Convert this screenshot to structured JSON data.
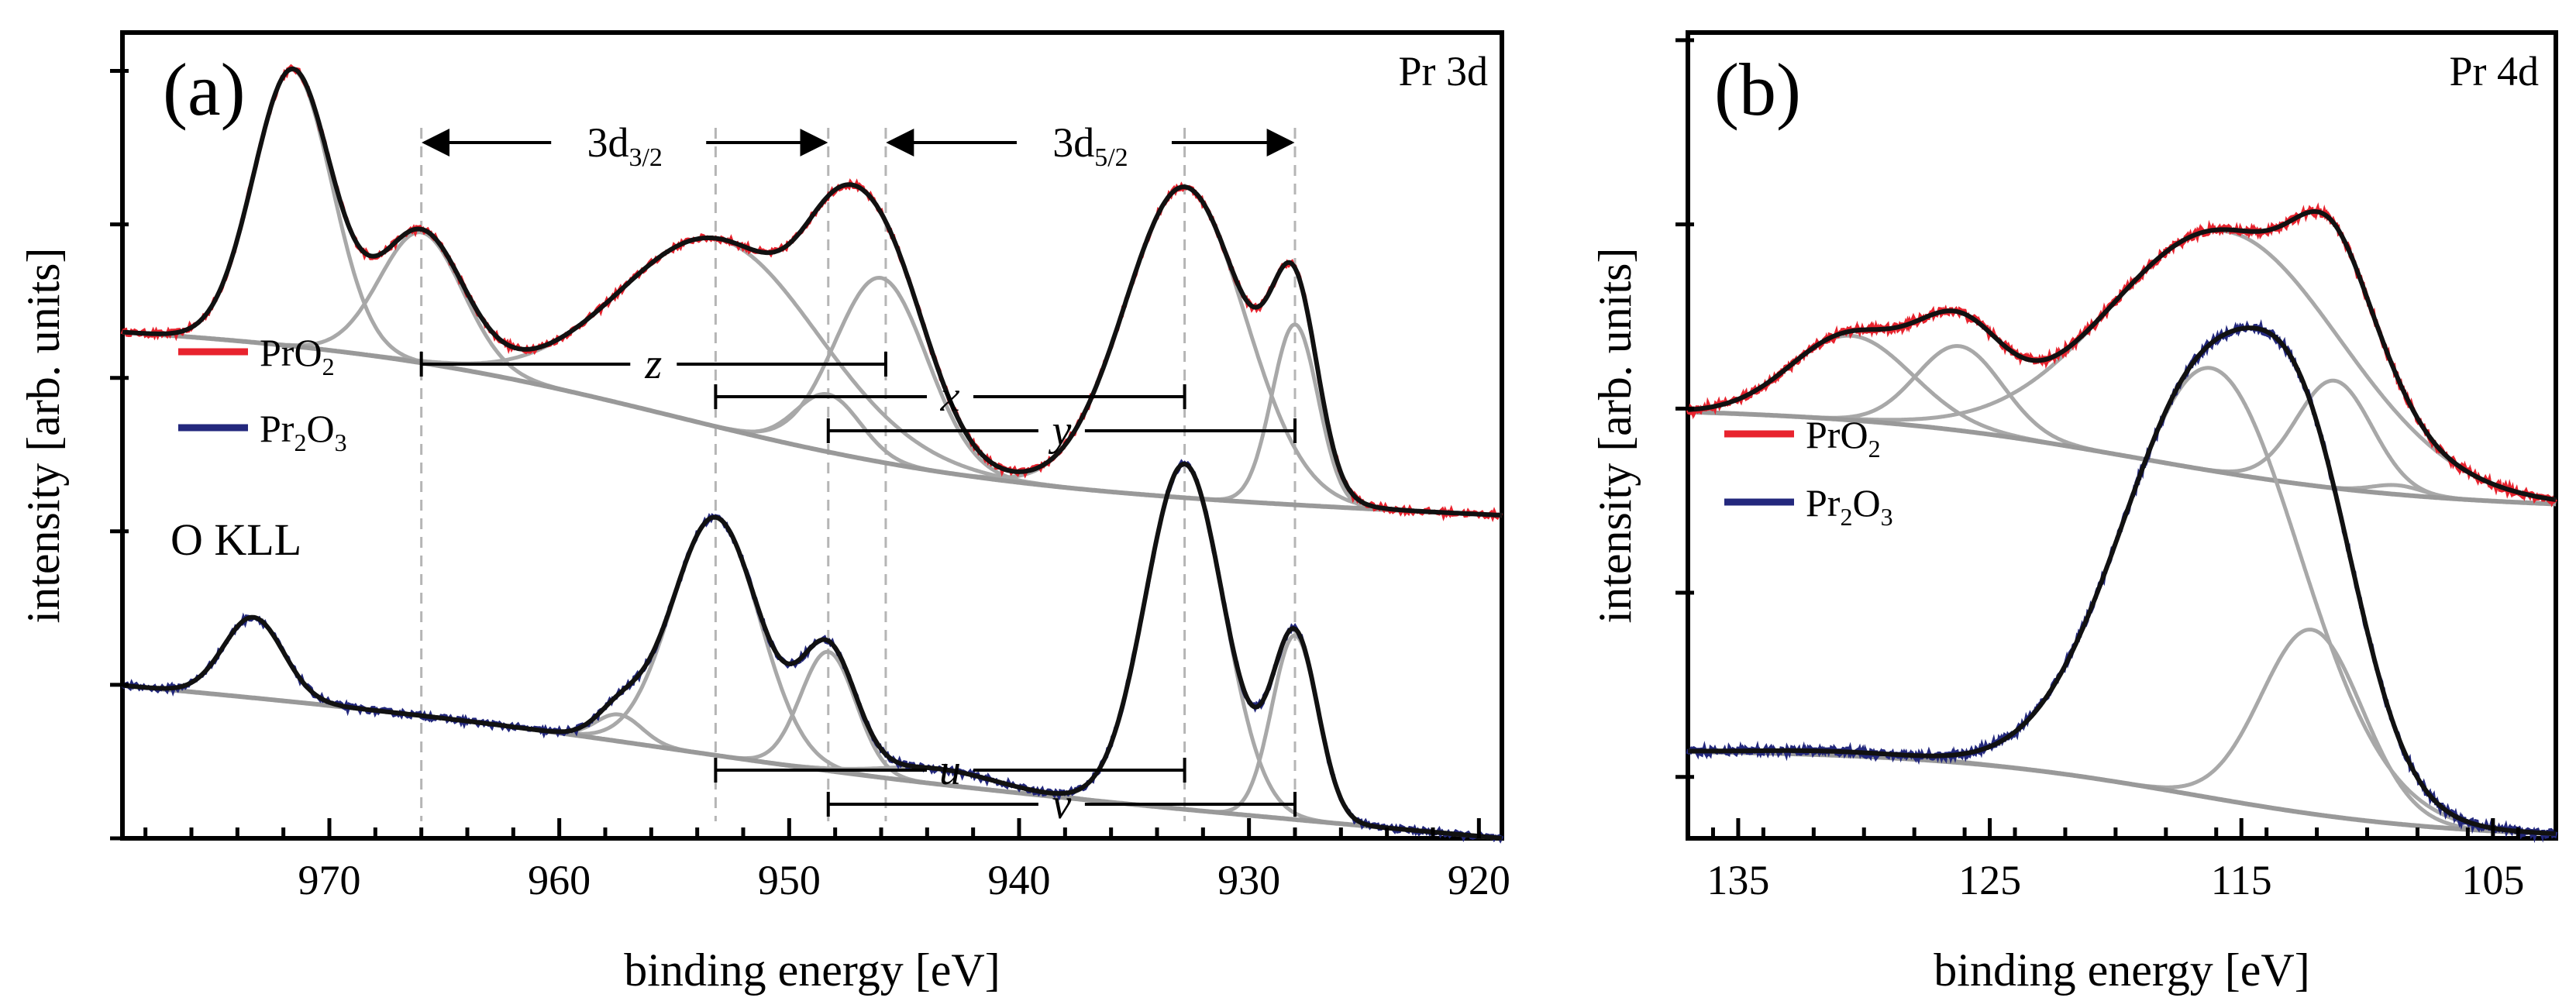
{
  "chart_data": [
    {
      "type": "line",
      "panel_label": "(a)",
      "title": "Pr 3d",
      "xlabel": "binding energy [eV]",
      "ylabel": "intensity [arb. units]",
      "xlim": [
        979,
        919
      ],
      "ylim": [
        0,
        10.5
      ],
      "x_ticks": [
        970,
        960,
        950,
        940,
        930,
        920
      ],
      "x_tick_labels": [
        "970",
        "960",
        "950",
        "940",
        "930",
        "920"
      ],
      "y_ticks": [
        0,
        2,
        4,
        6,
        8,
        10
      ],
      "legend": [
        "PrO2",
        "Pr2O3"
      ],
      "legend_position": "center-left",
      "annotations": {
        "o_kll": "O KLL",
        "d32": "3d3/2",
        "d52": "3d5/2",
        "z": "z",
        "x": "x",
        "y": "y",
        "u": "u",
        "v": "v"
      },
      "guide_lines_eV": [
        966,
        953.2,
        948.3,
        945.8,
        932.8,
        928
      ],
      "spin_orbit_arrows_eV": [
        [
          966,
          948.3
        ],
        [
          945.8,
          928
        ]
      ],
      "separations": [
        {
          "name": "z",
          "from": 966,
          "to": 945.8
        },
        {
          "name": "x",
          "from": 953.2,
          "to": 932.8
        },
        {
          "name": "y",
          "from": 948.3,
          "to": 928
        },
        {
          "name": "u",
          "from": 953.2,
          "to": 932.8
        },
        {
          "name": "v",
          "from": 948.3,
          "to": 928
        }
      ],
      "series": [
        {
          "name": "PrO2",
          "color": "#e8232e",
          "offset": 4.15,
          "background": {
            "left": 2.5,
            "right": 0.05,
            "step_center": 955,
            "step_width": 7,
            "slope": 0.3
          },
          "components": [
            {
              "center": 971.6,
              "height": 3.6,
              "width": 1.7
            },
            {
              "center": 966.0,
              "height": 1.7,
              "width": 1.8
            },
            {
              "center": 953.0,
              "height": 2.45,
              "width": 4.3
            },
            {
              "center": 948.3,
              "height": 0.75,
              "width": 1.4
            },
            {
              "center": 946.0,
              "height": 2.4,
              "width": 2.0
            },
            {
              "center": 932.8,
              "height": 4.05,
              "width": 2.6
            },
            {
              "center": 928.0,
              "height": 2.35,
              "width": 1.0
            }
          ]
        },
        {
          "name": "Pr2O3",
          "color": "#23287d",
          "offset": 0.0,
          "background": {
            "left": 2.0,
            "right": 0.0,
            "step_center": 955,
            "step_width": 6,
            "slope": 0.8
          },
          "components": [
            {
              "center": 973.3,
              "height": 1.05,
              "width": 1.3
            },
            {
              "center": 957.4,
              "height": 0.35,
              "width": 1.0
            },
            {
              "center": 953.2,
              "height": 3.1,
              "width": 1.9
            },
            {
              "center": 948.3,
              "height": 1.55,
              "width": 1.2
            },
            {
              "center": 943.5,
              "height": 0.2,
              "width": 2.5
            },
            {
              "center": 932.8,
              "height": 4.5,
              "width": 1.7
            },
            {
              "center": 928.0,
              "height": 2.4,
              "width": 1.0
            }
          ]
        }
      ]
    },
    {
      "type": "line",
      "panel_label": "(b)",
      "title": "Pr 4d",
      "xlabel": "binding energy [eV]",
      "ylabel": "intensity [arb. units]",
      "xlim": [
        137,
        102.5
      ],
      "ylim": [
        0,
        10.5
      ],
      "x_ticks": [
        135,
        125,
        115,
        105
      ],
      "x_tick_labels": [
        "135",
        "125",
        "115",
        "105"
      ],
      "y_ticks": [
        0.8,
        3.2,
        5.6,
        8.0,
        10.4
      ],
      "legend": [
        "PrO2",
        "Pr2O3"
      ],
      "legend_position": "center-left",
      "series": [
        {
          "name": "PrO2",
          "color": "#e8232e",
          "offset": 4.3,
          "background": {
            "left": 1.3,
            "right": 0.0,
            "step_center": 119,
            "step_width": 5.5,
            "slope": 0.08
          },
          "components": [
            {
              "center": 130.5,
              "height": 1.1,
              "width": 2.4
            },
            {
              "center": 126.2,
              "height": 1.1,
              "width": 1.7
            },
            {
              "center": 115.6,
              "height": 3.15,
              "width": 4.6
            },
            {
              "center": 111.3,
              "height": 1.4,
              "width": 1.5
            },
            {
              "center": 108.8,
              "height": 0.12,
              "width": 1.0
            }
          ]
        },
        {
          "name": "Pr2O3",
          "color": "#23287d",
          "offset": 0.0,
          "background": {
            "left": 1.15,
            "right": 0.0,
            "step_center": 117,
            "step_width": 5.0,
            "slope": 0.03
          },
          "components": [
            {
              "center": 131.0,
              "height": 0.05,
              "width": 3.0
            },
            {
              "center": 116.2,
              "height": 5.6,
              "width": 3.5
            },
            {
              "center": 112.2,
              "height": 2.4,
              "width": 2.0
            }
          ]
        }
      ]
    }
  ]
}
